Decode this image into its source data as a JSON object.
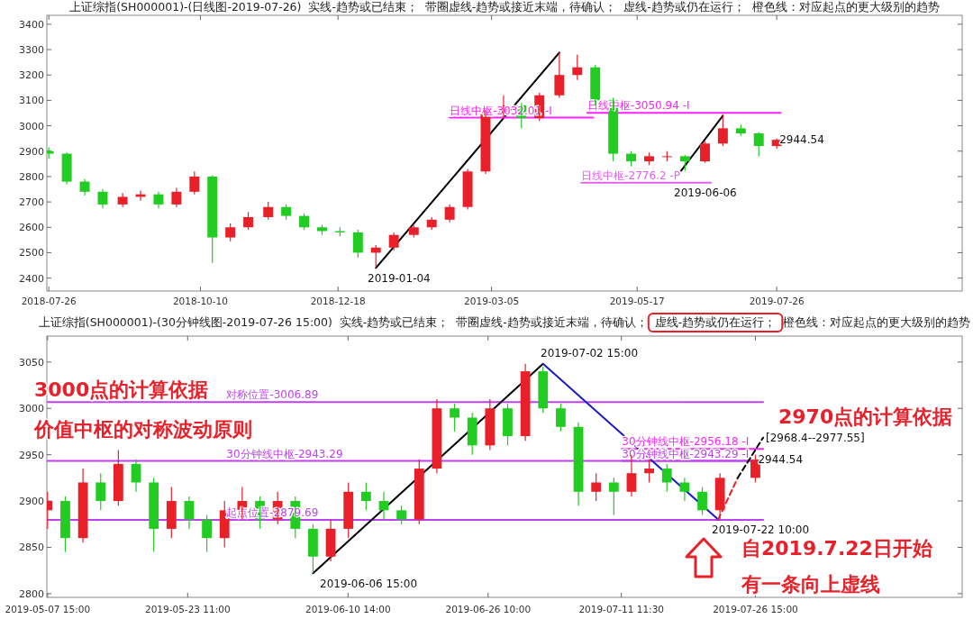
{
  "chart_data": [
    {
      "type": "candlestick",
      "title": "上证综指(SH000001)-(日线图-2019-07-26)  实线-趋势或已结束；  带圈虚线-趋势或接近末端，待确认；  虚线-趋势或仍在运行；  橙色线：对应起点的更大级别的趋势",
      "x": [
        "2018-07-26",
        "2018-08-04",
        "2018-08-13",
        "2018-08-22",
        "2018-09-01",
        "2018-09-10",
        "2018-09-19",
        "2018-09-28",
        "2018-10-07",
        "2018-10-16",
        "2018-10-25",
        "2018-11-03",
        "2018-11-13",
        "2018-11-22",
        "2018-12-01",
        "2018-12-10",
        "2018-12-19",
        "2018-12-28",
        "2019-01-06",
        "2019-01-15",
        "2019-01-25",
        "2019-02-03",
        "2019-02-12",
        "2019-02-21",
        "2019-03-02",
        "2019-03-11",
        "2019-03-20",
        "2019-03-29",
        "2019-04-08",
        "2019-04-17",
        "2019-04-26",
        "2019-05-05",
        "2019-05-14",
        "2019-05-23",
        "2019-06-01",
        "2019-06-10",
        "2019-06-20",
        "2019-06-29",
        "2019-07-08",
        "2019-07-17",
        "2019-07-26"
      ],
      "ohlc": [
        [
          2900,
          2915,
          2870,
          2890
        ],
        [
          2890,
          2895,
          2770,
          2780
        ],
        [
          2780,
          2790,
          2725,
          2740
        ],
        [
          2740,
          2750,
          2675,
          2690
        ],
        [
          2690,
          2735,
          2680,
          2720
        ],
        [
          2720,
          2745,
          2705,
          2730
        ],
        [
          2730,
          2740,
          2675,
          2690
        ],
        [
          2690,
          2755,
          2680,
          2740
        ],
        [
          2740,
          2820,
          2730,
          2800
        ],
        [
          2800,
          2805,
          2460,
          2560
        ],
        [
          2560,
          2615,
          2545,
          2600
        ],
        [
          2600,
          2660,
          2590,
          2640
        ],
        [
          2640,
          2700,
          2630,
          2680
        ],
        [
          2680,
          2690,
          2630,
          2645
        ],
        [
          2645,
          2655,
          2590,
          2600
        ],
        [
          2600,
          2610,
          2570,
          2585
        ],
        [
          2585,
          2600,
          2565,
          2580
        ],
        [
          2580,
          2590,
          2480,
          2500
        ],
        [
          2500,
          2530,
          2440,
          2520
        ],
        [
          2520,
          2580,
          2510,
          2570
        ],
        [
          2570,
          2610,
          2560,
          2600
        ],
        [
          2600,
          2640,
          2590,
          2630
        ],
        [
          2630,
          2690,
          2620,
          2680
        ],
        [
          2680,
          2830,
          2670,
          2820
        ],
        [
          2820,
          3060,
          2810,
          3050
        ],
        [
          3050,
          3120,
          3030,
          3080
        ],
        [
          3080,
          3090,
          2990,
          3030
        ],
        [
          3030,
          3130,
          3020,
          3120
        ],
        [
          3120,
          3288,
          3110,
          3200
        ],
        [
          3200,
          3280,
          3180,
          3230
        ],
        [
          3230,
          3240,
          3080,
          3100
        ],
        [
          3100,
          3110,
          2860,
          2890
        ],
        [
          2890,
          2900,
          2840,
          2860
        ],
        [
          2860,
          2895,
          2845,
          2880
        ],
        [
          2880,
          2900,
          2860,
          2880
        ],
        [
          2880,
          2885,
          2822,
          2860
        ],
        [
          2860,
          2940,
          2855,
          2930
        ],
        [
          2930,
          3040,
          2920,
          2990
        ],
        [
          2990,
          3005,
          2960,
          2970
        ],
        [
          2970,
          2975,
          2880,
          2920
        ],
        [
          2920,
          2950,
          2910,
          2944.54
        ]
      ],
      "series": [
        {
          "type": "line",
          "color": "#000000",
          "x": [
            "2019-01-06",
            "2019-04-08"
          ],
          "values": [
            2440,
            3288
          ]
        },
        {
          "type": "line",
          "color": "#000000",
          "x": [
            "2019-06-08",
            "2019-06-29"
          ],
          "values": [
            2822,
            3040
          ]
        },
        {
          "type": "line",
          "name": "日线中枢-3032.01 -I",
          "color": "#ff22ff",
          "x": [
            "2019-02-12",
            "2019-04-25"
          ],
          "values": [
            3032.01,
            3032.01
          ]
        },
        {
          "type": "line",
          "name": "日线中枢-3050.94 -I",
          "color": "#ff22ff",
          "x": [
            "2019-04-22",
            "2019-07-28"
          ],
          "values": [
            3050.94,
            3050.94
          ]
        },
        {
          "type": "line",
          "name": "日线中枢-2776.2 -P",
          "color": "#e060f0",
          "x": [
            "2019-04-19",
            "2019-06-23"
          ],
          "values": [
            2776.2,
            2776.2
          ]
        }
      ],
      "annotations": [
        "2019-01-04",
        "2019-06-06",
        {
          "text": "2944.54",
          "x": "2019-07-26",
          "y": 2944.54
        }
      ],
      "xlim": [
        "2018-07-25",
        "2019-10-27"
      ],
      "xticks": [
        "2018-07-26",
        "2018-10-10",
        "2018-12-18",
        "2019-03-05",
        "2019-05-17",
        "2019-07-26"
      ],
      "ylim": [
        2349,
        3435
      ],
      "yticks": [
        2400,
        2500,
        2600,
        2700,
        2800,
        2900,
        3000,
        3100,
        3200,
        3300,
        3400
      ],
      "grid": false
    },
    {
      "type": "candlestick",
      "title": "上证综指(SH000001)-(30分钟线图-2019-07-26 15:00)  实线-趋势或已结束；  带圈虚线-趋势或接近末端，待确认；  虚线-趋势或仍在运行；  橙色线：对应起点的更大级别的趋势",
      "x": [
        "2019-05-07T15:00",
        "2019-05-09T15:00",
        "2019-05-11T15:00",
        "2019-05-13T15:00",
        "2019-05-15T15:00",
        "2019-05-17T15:00",
        "2019-05-19T15:00",
        "2019-05-21T15:00",
        "2019-05-23T15:00",
        "2019-05-25T15:00",
        "2019-05-27T15:00",
        "2019-05-29T15:00",
        "2019-05-31T15:00",
        "2019-06-02T15:00",
        "2019-06-04T15:00",
        "2019-06-06T15:00",
        "2019-06-08T15:00",
        "2019-06-10T15:00",
        "2019-06-12T15:00",
        "2019-06-14T15:00",
        "2019-06-16T15:00",
        "2019-06-18T15:00",
        "2019-06-20T15:00",
        "2019-06-22T15:00",
        "2019-06-24T15:00",
        "2019-06-26T15:00",
        "2019-06-28T15:00",
        "2019-06-30T15:00",
        "2019-07-02T15:00",
        "2019-07-04T15:00",
        "2019-07-06T15:00",
        "2019-07-08T15:00",
        "2019-07-10T15:00",
        "2019-07-12T15:00",
        "2019-07-14T15:00",
        "2019-07-16T15:00",
        "2019-07-18T15:00",
        "2019-07-20T15:00",
        "2019-07-22T15:00",
        "2019-07-26T15:00"
      ],
      "ohlc": [
        [
          2890,
          2910,
          2870,
          2900
        ],
        [
          2900,
          2905,
          2845,
          2860
        ],
        [
          2860,
          2935,
          2855,
          2920
        ],
        [
          2920,
          2930,
          2890,
          2900
        ],
        [
          2900,
          2955,
          2895,
          2940
        ],
        [
          2940,
          2945,
          2910,
          2920
        ],
        [
          2920,
          2925,
          2845,
          2870
        ],
        [
          2870,
          2915,
          2860,
          2900
        ],
        [
          2900,
          2905,
          2870,
          2880
        ],
        [
          2880,
          2885,
          2845,
          2860
        ],
        [
          2860,
          2900,
          2850,
          2890
        ],
        [
          2890,
          2915,
          2880,
          2900
        ],
        [
          2900,
          2905,
          2870,
          2880
        ],
        [
          2880,
          2910,
          2875,
          2900
        ],
        [
          2900,
          2905,
          2860,
          2870
        ],
        [
          2870,
          2875,
          2822,
          2840
        ],
        [
          2840,
          2880,
          2835,
          2870
        ],
        [
          2870,
          2920,
          2860,
          2910
        ],
        [
          2910,
          2920,
          2890,
          2900
        ],
        [
          2900,
          2910,
          2880,
          2890
        ],
        [
          2890,
          2895,
          2875,
          2880
        ],
        [
          2880,
          2945,
          2875,
          2935
        ],
        [
          2935,
          3010,
          2930,
          3000
        ],
        [
          3000,
          3005,
          2975,
          2990
        ],
        [
          2990,
          2995,
          2950,
          2960
        ],
        [
          2960,
          3010,
          2955,
          3000
        ],
        [
          3000,
          3005,
          2960,
          2970
        ],
        [
          2970,
          3048,
          2965,
          3040
        ],
        [
          3040,
          3045,
          2995,
          3000
        ],
        [
          3000,
          3005,
          2975,
          2980
        ],
        [
          2980,
          2985,
          2895,
          2910
        ],
        [
          2910,
          2930,
          2900,
          2920
        ],
        [
          2920,
          2925,
          2885,
          2910
        ],
        [
          2910,
          2950,
          2905,
          2930
        ],
        [
          2930,
          2945,
          2920,
          2935
        ],
        [
          2935,
          2940,
          2910,
          2920
        ],
        [
          2920,
          2925,
          2900,
          2910
        ],
        [
          2910,
          2915,
          2885,
          2890
        ],
        [
          2890,
          2930,
          2880,
          2925
        ],
        [
          2925,
          2950,
          2920,
          2944.54
        ]
      ],
      "series": [
        {
          "type": "line",
          "name": "对称位置-3006.89",
          "color": "#c040f0",
          "x": [
            "2019-05-07T15:00",
            "2019-07-27T12:00"
          ],
          "values": [
            3006.89,
            3006.89
          ]
        },
        {
          "type": "line",
          "name": "30分钟线中枢-2943.29",
          "color": "#c040f0",
          "x": [
            "2019-05-07T15:00",
            "2019-07-27T12:00"
          ],
          "values": [
            2943.29,
            2943.29
          ]
        },
        {
          "type": "line",
          "name": "起点位置-2879.69",
          "color": "#c040f0",
          "x": [
            "2019-05-07T15:00",
            "2019-07-27T12:00"
          ],
          "values": [
            2879.69,
            2879.69
          ]
        },
        {
          "type": "line",
          "name": "30分钟线中枢-2943.29 -I",
          "color": "#c040f0",
          "x": [
            "2019-07-11T13:00",
            "2019-07-27T12:00"
          ],
          "values": [
            2943.29,
            2943.29
          ]
        },
        {
          "type": "line",
          "name": "30分钟线中枢-2956.18 -I",
          "color": "#ff22ff",
          "x": [
            "2019-07-11T13:00",
            "2019-07-27T12:00"
          ],
          "values": [
            2956.18,
            2956.18
          ]
        },
        {
          "type": "line",
          "color": "#000000",
          "x": [
            "2019-06-06T15:00",
            "2019-07-02T15:00"
          ],
          "values": [
            2822,
            3048
          ]
        },
        {
          "type": "line",
          "color": "#1a1acc",
          "x": [
            "2019-07-02T15:00",
            "2019-07-22T10:00"
          ],
          "values": [
            3048,
            2880
          ]
        },
        {
          "type": "line",
          "color": "#e8202a",
          "line_style": "dashed",
          "x": [
            "2019-07-22T10:00",
            "2019-07-24T15:00"
          ],
          "values": [
            2880,
            2925
          ]
        },
        {
          "type": "line",
          "color": "#000000",
          "line_style": "dashed",
          "x": [
            "2019-07-24T15:00",
            "2019-07-27T12:00"
          ],
          "values": [
            2925,
            2968.4
          ]
        }
      ],
      "annotations": [
        "2019-07-02 15:00",
        "2019-06-06 15:00",
        "2019-07-22 10:00",
        {
          "text": "[2968.4--2977.55]",
          "x": "2019-07-27T12:00",
          "y": 2968.4
        },
        {
          "text": "2944.54",
          "x": "2019-07-26T15:00",
          "y": 2944.54
        },
        "3000点的计算依据",
        "价值中枢的对称波动原则",
        "2970点的计算依据",
        "自2019.7.22日开始",
        "有一条向上虚线"
      ],
      "xlim": [
        "2019-05-07T13:00",
        "2019-08-19T00:00"
      ],
      "xticks": [
        {
          "value": "2019-05-07T15:00",
          "label": "2019-05-07 15:00"
        },
        {
          "value": "2019-05-23T11:00",
          "label": "2019-05-23 11:00"
        },
        {
          "value": "2019-06-10T14:00",
          "label": "2019-06-10 14:00"
        },
        {
          "value": "2019-06-26T10:00",
          "label": "2019-06-26 10:00"
        },
        {
          "value": "2019-07-11T11:30",
          "label": "2019-07-11 11:30"
        },
        {
          "value": "2019-07-26T15:00",
          "label": "2019-07-26 15:00"
        }
      ],
      "ylim": [
        2796,
        3078
      ],
      "yticks": [
        2800,
        2850,
        2900,
        2950,
        3000,
        3050
      ],
      "grid": false
    }
  ]
}
